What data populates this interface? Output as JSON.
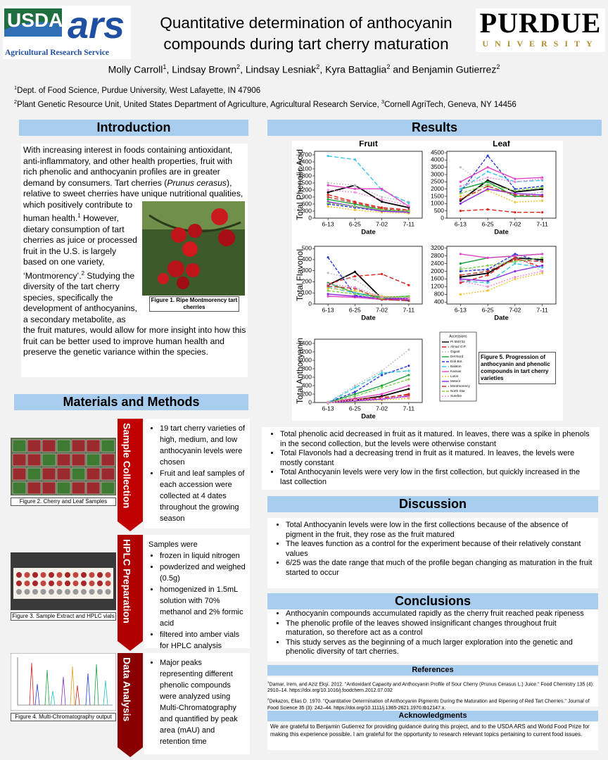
{
  "header": {
    "usda_logo": {
      "name": "USDA",
      "mark": "ars",
      "tagline": "Agricultural Research Service"
    },
    "purdue_logo": {
      "name": "PURDUE",
      "sub": "UNIVERSITY"
    },
    "title_lines": [
      "Quantitative determination of anthocyanin",
      "compounds during tart cherry maturation"
    ],
    "authors": [
      {
        "name": "Molly Carroll",
        "sup": "1"
      },
      {
        "name": "Lindsay Brown",
        "sup": "2"
      },
      {
        "name": "Lindsay Lesniak",
        "sup": "2"
      },
      {
        "name": "Kyra Battaglia",
        "sup": "2"
      },
      {
        "name": "Benjamin Gutierrez",
        "sup": "2"
      }
    ],
    "conjunction": "and",
    "affiliations": [
      [
        {
          "sup": "1",
          "text": "Dept. of Food Science, Purdue University, West Lafayette, IN 47906"
        }
      ],
      [
        {
          "sup": "2",
          "text": "Plant Genetic Resource Unit, United States Department of Agriculture, Agricultural Research Service, "
        },
        {
          "sup": "3",
          "text": "Cornell AgriTech, Geneva, NY 14456"
        }
      ]
    ]
  },
  "introduction": {
    "heading": "Introduction",
    "parts": [
      "With increasing interest in foods containing antioxidant, anti-inflammatory, and other health properties, fruit with rich phenolic and anthocyanin profiles are in greater demand by consumers. Tart cherries (",
      "Prunus cerasus",
      "), relative to sweet cherries have unique nutritional qualities, which positively contribute to human health.",
      "1",
      " However, dietary consumption of tart cherries as juice or processed fruit in the U.S. is largely based on one variety, ‘Montmorency’.",
      "2",
      " Studying the diversity of the tart cherry species, specifically the development of anthocyanins, a secondary metabolite, as the fruit matures, would allow for more insight into how this fruit can be better used to improve human health and preserve the genetic variance within the species."
    ],
    "figure_caption": "Figure 1. Ripe  Montmorency tart cherries"
  },
  "methods": {
    "heading": "Materials and Methods",
    "steps": [
      {
        "label": "Sample Collection",
        "caption": "Figure 2. Cherry and Leaf Samples",
        "bullets": [
          "19 tart cherry varieties of high, medium, and low anthocyanin levels were chosen",
          "Fruit and leaf samples of each accession were collected at 4 dates throughout the growing season"
        ]
      },
      {
        "label": "HPLC Preparation",
        "caption": "Figure 3. Sample Extract and HPLC vials",
        "lead": "Samples were",
        "bullets": [
          "frozen in liquid nitrogen",
          "powderized and weighed (0.5g)",
          "homogenized in 1.5mL solution with 70% methanol and 2% formic acid",
          "filtered into amber vials for HPLC analysis"
        ]
      },
      {
        "label": "Data Analysis",
        "caption": "Figure 4. Multi-Chromatography output",
        "bullets": [
          "Major peaks representing different phenolic compounds were analyzed using Multi-Chromatography and quantified by peak area (mAU) and retention time"
        ]
      }
    ]
  },
  "results": {
    "heading": "Results",
    "legend_title": "Accessions",
    "figure_caption": "Figure 5. Progression of anthocyanin and phenolic compounds in tart cherry varieties",
    "bullets": [
      "Total phenolic acid decreased in fruit as it matured.  In leaves, there was a spike in phenols in the second collection, but the levels were otherwise constant",
      "Total Flavonols had a decreasing trend in fruit as it matured.  In leaves, the levels were mostly constant",
      "Total Anthocyanin levels were very low in the first collection, but quickly increased in the last collection"
    ]
  },
  "discussion": {
    "heading": "Discussion",
    "bullets": [
      "Total Anthocyanin levels were low in the first collections because of the absence of pigment in the fruit, they rose as the fruit matured",
      "The leaves function as a control for the experiment because of their relatively constant values",
      "6/25 was the date range that much of the profile began changing as maturation in the fruit started to occur"
    ]
  },
  "conclusions": {
    "heading": "Conclusions",
    "bullets": [
      "Anthocyanin compounds accumulated rapidly as the cherry fruit reached peak ripeness",
      "The phenolic profile of the leaves showed insignificant changes throughout fruit maturation, so therefore act as a control",
      "This study serves as the beginning of a much larger exploration into the genetic and phenolic diversity of tart cherries."
    ]
  },
  "references": {
    "heading": "References",
    "items": [
      {
        "sup": "1",
        "text": "Damar, Irem, and Aziz Ekşi. 2012. \"Antioxidant Capacity and Anthocyanin Profile of Sour Cherry (Prunus Cerasus L.) Juice.\" Food Chemistry 135 (4): 2910–14. https://doi.org/10.1016/j.foodchem.2012.07.032"
      },
      {
        "sup": "2",
        "text": "Dekazos, Elias D. 1970. \"Quantitative Determination of Anthocyanin Pigments During the Maturation and Ripening of Red Tart Cherries.\" Journal of Food Science 35 (3): 242–44. https://doi.org/10.1111/j.1365-2621.1970.tb12147.x."
      }
    ]
  },
  "acknowledgments": {
    "heading": "Acknowledgments",
    "text": "We are grateful to Benjamin Gutierrez for providing guidance during this project, and to the USDA ARS and World Food Prize for making this experience possible.  I am grateful for the opportunity to research relevant topics pertaining to current food issues."
  },
  "chart_data": [
    {
      "type": "line",
      "title": "Fruit",
      "y_label": "Total Phenolic Acid",
      "x_label": "Date",
      "categories": [
        "6-13",
        "6-25",
        "7-02",
        "7-11"
      ],
      "ylim": [
        0,
        2850
      ],
      "yticks": [
        0,
        300,
        600,
        900,
        1200,
        1500,
        1800,
        2100,
        2400,
        2700
      ],
      "series": [
        {
          "name": "PI 550732",
          "color": "#000000",
          "values": [
            1100,
            1400,
            700,
            450
          ]
        },
        {
          "name": "Almaz O.P.",
          "color": "#e0201b",
          "values": [
            1000,
            700,
            450,
            350
          ]
        },
        {
          "name": "Gigant",
          "color": "#bfbfbf",
          "values": [
            1500,
            1400,
            900,
            700
          ]
        },
        {
          "name": "Del Nord",
          "color": "#1a9e3a",
          "values": [
            800,
            600,
            350,
            300
          ]
        },
        {
          "name": "Erdi Bot.",
          "color": "#2b3bd6",
          "values": [
            600,
            450,
            300,
            250
          ]
        },
        {
          "name": "Balaton",
          "color": "#38c7e6",
          "values": [
            2650,
            2500,
            1200,
            650
          ]
        },
        {
          "name": "Kansas",
          "color": "#e043c9",
          "values": [
            1400,
            1250,
            1250,
            500
          ]
        },
        {
          "name": "Lutos",
          "color": "#f2c12e",
          "values": [
            500,
            350,
            250,
            200
          ]
        },
        {
          "name": "Meteor",
          "color": "#8a2be2",
          "values": [
            700,
            500,
            300,
            250
          ]
        },
        {
          "name": "Montmorency",
          "color": "#c0392b",
          "values": [
            900,
            650,
            400,
            300
          ]
        },
        {
          "name": "North Star",
          "color": "#7fd34e",
          "values": [
            650,
            500,
            350,
            300
          ]
        },
        {
          "name": "Surefire",
          "color": "#f58ad8",
          "values": [
            1200,
            1100,
            800,
            550
          ]
        }
      ]
    },
    {
      "type": "line",
      "title": "Leaf",
      "x_label": "Date",
      "categories": [
        "6-13",
        "6-25",
        "7-02",
        "7-11"
      ],
      "ylim": [
        0,
        4600
      ],
      "yticks": [
        0,
        500,
        1000,
        1500,
        2000,
        2500,
        3000,
        3500,
        4000,
        4500
      ],
      "series": [
        {
          "name": "PI 550732",
          "color": "#000000",
          "values": [
            1200,
            2600,
            1800,
            2000
          ]
        },
        {
          "name": "Almaz O.P.",
          "color": "#e0201b",
          "values": [
            500,
            600,
            400,
            400
          ]
        },
        {
          "name": "Gigant",
          "color": "#bfbfbf",
          "values": [
            3500,
            2200,
            1500,
            1800
          ]
        },
        {
          "name": "Del Nord",
          "color": "#1a9e3a",
          "values": [
            2000,
            2500,
            1500,
            1500
          ]
        },
        {
          "name": "Erdi Bot.",
          "color": "#2b3bd6",
          "values": [
            1800,
            4300,
            2000,
            2200
          ]
        },
        {
          "name": "Balaton",
          "color": "#38c7e6",
          "values": [
            2000,
            3200,
            2500,
            2600
          ]
        },
        {
          "name": "Kansas",
          "color": "#e043c9",
          "values": [
            2500,
            3500,
            2700,
            2800
          ]
        },
        {
          "name": "Lutos",
          "color": "#f2c12e",
          "values": [
            1500,
            1900,
            1100,
            1200
          ]
        },
        {
          "name": "Meteor",
          "color": "#8a2be2",
          "values": [
            1000,
            2000,
            1700,
            1600
          ]
        },
        {
          "name": "Montmorency",
          "color": "#c0392b",
          "values": [
            1300,
            2200,
            1600,
            1500
          ]
        },
        {
          "name": "North Star",
          "color": "#7fd34e",
          "values": [
            1700,
            2300,
            1900,
            2100
          ]
        },
        {
          "name": "Surefire",
          "color": "#f58ad8",
          "values": [
            2200,
            2800,
            2500,
            2700
          ]
        }
      ]
    },
    {
      "type": "line",
      "y_label": "Total Flavonol",
      "x_label": "Date",
      "categories": [
        "6-13",
        "6-25",
        "7-02",
        "7-11"
      ],
      "ylim": [
        0,
        520
      ],
      "yticks": [
        0,
        100,
        200,
        300,
        400,
        500
      ],
      "series": [
        {
          "name": "PI 550732",
          "color": "#000000",
          "values": [
            170,
            290,
            50,
            40
          ]
        },
        {
          "name": "Almaz O.P.",
          "color": "#e0201b",
          "values": [
            180,
            250,
            270,
            170
          ]
        },
        {
          "name": "Gigant",
          "color": "#bfbfbf",
          "values": [
            280,
            220,
            60,
            50
          ]
        },
        {
          "name": "Del Nord",
          "color": "#1a9e3a",
          "values": [
            190,
            100,
            60,
            70
          ]
        },
        {
          "name": "Erdi Bot.",
          "color": "#2b3bd6",
          "values": [
            420,
            80,
            40,
            30
          ]
        },
        {
          "name": "Balaton",
          "color": "#38c7e6",
          "values": [
            150,
            100,
            50,
            60
          ]
        },
        {
          "name": "Kansas",
          "color": "#e043c9",
          "values": [
            70,
            60,
            40,
            40
          ]
        },
        {
          "name": "Lutos",
          "color": "#f2c12e",
          "values": [
            140,
            120,
            70,
            60
          ]
        },
        {
          "name": "Meteor",
          "color": "#8a2be2",
          "values": [
            90,
            70,
            50,
            50
          ]
        },
        {
          "name": "Montmorency",
          "color": "#c0392b",
          "values": [
            160,
            140,
            40,
            30
          ]
        },
        {
          "name": "North Star",
          "color": "#7fd34e",
          "values": [
            120,
            90,
            50,
            70
          ]
        },
        {
          "name": "Surefire",
          "color": "#f58ad8",
          "values": [
            180,
            150,
            60,
            50
          ]
        }
      ]
    },
    {
      "type": "line",
      "x_label": "Date",
      "categories": [
        "6-13",
        "6-25",
        "7-02",
        "7-11"
      ],
      "ylim": [
        300,
        3300
      ],
      "yticks": [
        400,
        800,
        1200,
        1600,
        2000,
        2400,
        2800,
        3200
      ],
      "series": [
        {
          "name": "PI 550732",
          "color": "#000000",
          "values": [
            1700,
            1900,
            2700,
            2600
          ]
        },
        {
          "name": "Almaz O.P.",
          "color": "#e0201b",
          "values": [
            1400,
            1800,
            2700,
            2200
          ]
        },
        {
          "name": "Gigant",
          "color": "#bfbfbf",
          "values": [
            2200,
            2000,
            2800,
            2000
          ]
        },
        {
          "name": "Del Nord",
          "color": "#1a9e3a",
          "values": [
            2400,
            2700,
            2800,
            2900
          ]
        },
        {
          "name": "Erdi Bot.",
          "color": "#2b3bd6",
          "values": [
            2000,
            2100,
            2900,
            2500
          ]
        },
        {
          "name": "Balaton",
          "color": "#38c7e6",
          "values": [
            1500,
            1400,
            2400,
            2200
          ]
        },
        {
          "name": "Kansas",
          "color": "#e043c9",
          "values": [
            2900,
            2700,
            2800,
            2900
          ]
        },
        {
          "name": "Lutos",
          "color": "#f2c12e",
          "values": [
            800,
            1000,
            1600,
            1900
          ]
        },
        {
          "name": "Meteor",
          "color": "#8a2be2",
          "values": [
            1600,
            1500,
            2000,
            2300
          ]
        },
        {
          "name": "Montmorency",
          "color": "#c0392b",
          "values": [
            1800,
            2000,
            2600,
            2500
          ]
        },
        {
          "name": "North Star",
          "color": "#7fd34e",
          "values": [
            2100,
            2300,
            2500,
            2700
          ]
        },
        {
          "name": "Surefire",
          "color": "#f58ad8",
          "values": [
            1500,
            1200,
            1700,
            2000
          ]
        }
      ]
    },
    {
      "type": "line",
      "y_label": "Total Anthocyanin",
      "x_label": "Date",
      "categories": [
        "6-13",
        "6-25",
        "7-02",
        "7-11"
      ],
      "ylim": [
        0,
        1500
      ],
      "yticks": [
        0,
        200,
        400,
        600,
        800,
        1000,
        1200,
        1400
      ],
      "series": [
        {
          "name": "PI 550732",
          "color": "#000000",
          "values": [
            0,
            60,
            150,
            320
          ]
        },
        {
          "name": "Almaz O.P.",
          "color": "#e0201b",
          "values": [
            0,
            50,
            100,
            200
          ]
        },
        {
          "name": "Gigant",
          "color": "#bfbfbf",
          "values": [
            0,
            400,
            750,
            1250
          ]
        },
        {
          "name": "Del Nord",
          "color": "#1a9e3a",
          "values": [
            0,
            200,
            400,
            650
          ]
        },
        {
          "name": "Erdi Bot.",
          "color": "#2b3bd6",
          "values": [
            0,
            250,
            650,
            870
          ]
        },
        {
          "name": "Balaton",
          "color": "#38c7e6",
          "values": [
            0,
            350,
            700,
            750
          ]
        },
        {
          "name": "Kansas",
          "color": "#e043c9",
          "values": [
            0,
            100,
            200,
            400
          ]
        },
        {
          "name": "Lutos",
          "color": "#f2c12e",
          "values": [
            0,
            30,
            60,
            100
          ]
        },
        {
          "name": "Meteor",
          "color": "#8a2be2",
          "values": [
            0,
            40,
            80,
            150
          ]
        },
        {
          "name": "Montmorency",
          "color": "#c0392b",
          "values": [
            0,
            80,
            120,
            180
          ]
        },
        {
          "name": "North Star",
          "color": "#7fd34e",
          "values": [
            0,
            150,
            350,
            550
          ]
        },
        {
          "name": "Surefire",
          "color": "#f58ad8",
          "values": [
            0,
            60,
            100,
            130
          ]
        }
      ]
    }
  ]
}
